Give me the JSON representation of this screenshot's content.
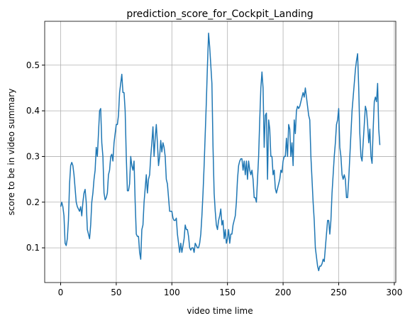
{
  "chart_data": {
    "type": "line",
    "title": "prediction_score_for_Cockpit_Landing",
    "xlabel": "video time lime",
    "ylabel": "score to be in video summary",
    "xlim": [
      -14.35,
      301.35
    ],
    "ylim": [
      0.024,
      0.596
    ],
    "xticks": [
      0,
      50,
      100,
      150,
      200,
      250,
      300
    ],
    "yticks": [
      0.1,
      0.2,
      0.3,
      0.4,
      0.5
    ],
    "grid": true,
    "color": "#1f77b4",
    "values": [
      0.19,
      0.2,
      0.19,
      0.17,
      0.11,
      0.105,
      0.12,
      0.16,
      0.24,
      0.28,
      0.287,
      0.28,
      0.26,
      0.23,
      0.2,
      0.19,
      0.185,
      0.18,
      0.19,
      0.17,
      0.2,
      0.22,
      0.228,
      0.2,
      0.14,
      0.13,
      0.12,
      0.15,
      0.2,
      0.22,
      0.25,
      0.27,
      0.32,
      0.3,
      0.35,
      0.4,
      0.405,
      0.33,
      0.3,
      0.22,
      0.205,
      0.21,
      0.22,
      0.26,
      0.27,
      0.3,
      0.305,
      0.29,
      0.33,
      0.35,
      0.37,
      0.37,
      0.39,
      0.44,
      0.46,
      0.48,
      0.44,
      0.44,
      0.4,
      0.3,
      0.225,
      0.225,
      0.24,
      0.3,
      0.28,
      0.27,
      0.29,
      0.2,
      0.13,
      0.125,
      0.125,
      0.09,
      0.075,
      0.14,
      0.15,
      0.2,
      0.23,
      0.26,
      0.22,
      0.25,
      0.26,
      0.3,
      0.33,
      0.365,
      0.3,
      0.34,
      0.37,
      0.33,
      0.28,
      0.3,
      0.335,
      0.31,
      0.33,
      0.32,
      0.3,
      0.25,
      0.24,
      0.21,
      0.18,
      0.18,
      0.18,
      0.165,
      0.16,
      0.16,
      0.165,
      0.13,
      0.11,
      0.09,
      0.11,
      0.09,
      0.105,
      0.12,
      0.15,
      0.14,
      0.14,
      0.125,
      0.1,
      0.095,
      0.1,
      0.1,
      0.09,
      0.11,
      0.105,
      0.1,
      0.1,
      0.11,
      0.13,
      0.17,
      0.22,
      0.28,
      0.35,
      0.42,
      0.5,
      0.57,
      0.54,
      0.5,
      0.46,
      0.32,
      0.22,
      0.18,
      0.15,
      0.14,
      0.16,
      0.17,
      0.185,
      0.15,
      0.16,
      0.12,
      0.14,
      0.11,
      0.12,
      0.14,
      0.11,
      0.13,
      0.13,
      0.15,
      0.16,
      0.17,
      0.2,
      0.25,
      0.28,
      0.29,
      0.295,
      0.295,
      0.27,
      0.29,
      0.26,
      0.29,
      0.25,
      0.29,
      0.27,
      0.26,
      0.27,
      0.25,
      0.21,
      0.21,
      0.2,
      0.25,
      0.3,
      0.38,
      0.45,
      0.485,
      0.45,
      0.32,
      0.39,
      0.395,
      0.25,
      0.38,
      0.36,
      0.3,
      0.3,
      0.26,
      0.27,
      0.23,
      0.22,
      0.23,
      0.24,
      0.25,
      0.27,
      0.265,
      0.29,
      0.3,
      0.3,
      0.34,
      0.3,
      0.37,
      0.36,
      0.3,
      0.33,
      0.28,
      0.38,
      0.35,
      0.4,
      0.41,
      0.405,
      0.41,
      0.42,
      0.43,
      0.44,
      0.43,
      0.45,
      0.43,
      0.41,
      0.39,
      0.38,
      0.3,
      0.25,
      0.2,
      0.16,
      0.1,
      0.08,
      0.06,
      0.05,
      0.06,
      0.06,
      0.065,
      0.075,
      0.07,
      0.1,
      0.13,
      0.16,
      0.16,
      0.13,
      0.16,
      0.22,
      0.26,
      0.3,
      0.33,
      0.37,
      0.38,
      0.405,
      0.32,
      0.3,
      0.26,
      0.25,
      0.26,
      0.25,
      0.21,
      0.21,
      0.25,
      0.3,
      0.35,
      0.4,
      0.43,
      0.46,
      0.49,
      0.51,
      0.525,
      0.45,
      0.35,
      0.3,
      0.29,
      0.33,
      0.37,
      0.41,
      0.4,
      0.37,
      0.33,
      0.36,
      0.3,
      0.285,
      0.36,
      0.42,
      0.43,
      0.42,
      0.46,
      0.36,
      0.325
    ]
  }
}
